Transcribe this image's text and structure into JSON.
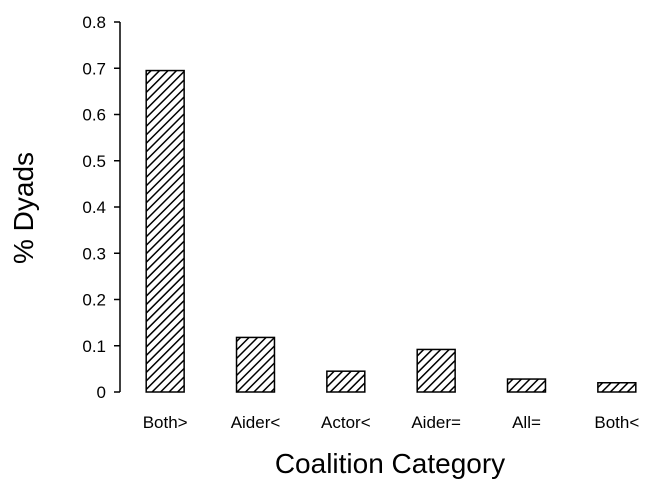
{
  "chart_data": {
    "type": "bar",
    "xlabel": "Coalition Category",
    "ylabel": "% Dyads",
    "categories": [
      "Both>",
      "Aider<",
      "Actor<",
      "Aider=",
      "All=",
      "Both<"
    ],
    "values": [
      0.695,
      0.118,
      0.045,
      0.092,
      0.028,
      0.02
    ],
    "ylim": [
      0,
      0.8
    ],
    "yticks": [
      "0",
      "0.1",
      "0.2",
      "0.3",
      "0.4",
      "0.5",
      "0.6",
      "0.7",
      "0.8"
    ],
    "bar_fill": "diagonal-hatch",
    "bar_color": "#000000",
    "grid": false,
    "legend": "none"
  }
}
